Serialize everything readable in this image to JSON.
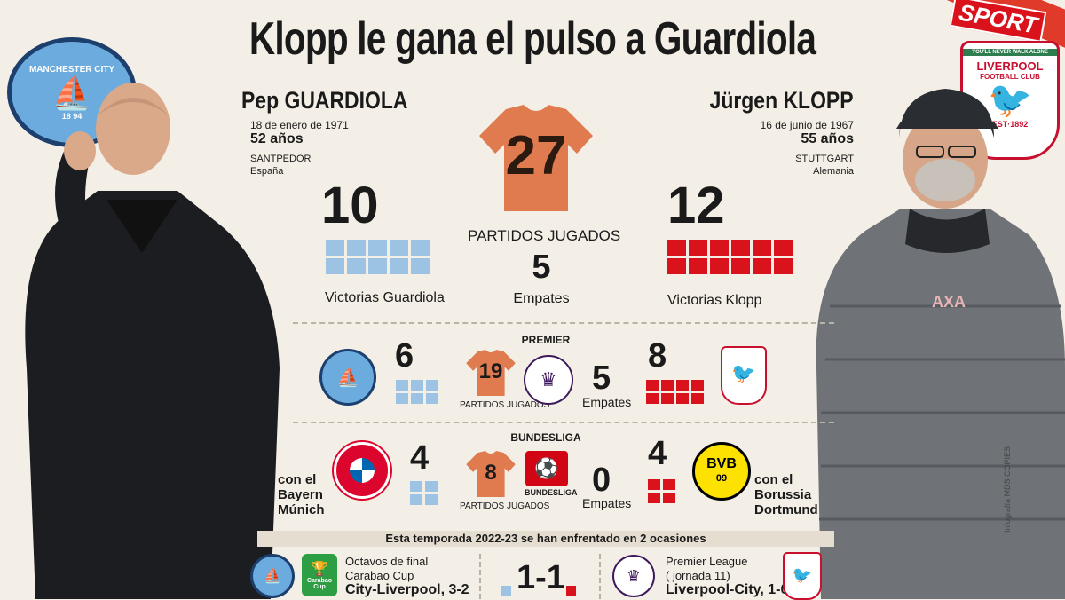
{
  "title": "Klopp le gana el pulso a Guardiola",
  "brand": "SPORT",
  "credit": "Infografía MDS COPIES",
  "guardiola": {
    "name": "Pep GUARDIOLA",
    "birth": "18 de enero de 1971",
    "age": "52 años",
    "town": "SANTPEDOR",
    "country": "España",
    "wins_total": "10",
    "wins_label": "Victorias Guardiola",
    "color": "#9cc3e3"
  },
  "klopp": {
    "name": "Jürgen KLOPP",
    "birth": "16 de junio de 1967",
    "age": "55 años",
    "town": "STUTTGART",
    "country": "Alemania",
    "wins_total": "12",
    "wins_label": "Victorias Klopp",
    "color": "#d9121c"
  },
  "overall": {
    "played": "27",
    "played_label": "PARTIDOS JUGADOS",
    "draws": "5",
    "draws_label": "Empates"
  },
  "premier": {
    "title": "PREMIER",
    "guardiola_wins": "6",
    "klopp_wins": "8",
    "played": "19",
    "played_label": "PARTIDOS JUGADOS",
    "draws": "5",
    "draws_label": "Empates"
  },
  "bundesliga": {
    "title": "BUNDESLIGA",
    "guardiola_wins": "4",
    "klopp_wins": "4",
    "played": "8",
    "played_label": "PARTIDOS JUGADOS",
    "draws": "0",
    "draws_label": "Empates",
    "logo_text": "BUNDESLIGA",
    "guardiola_club_prefix": "con el",
    "guardiola_club": "Bayern",
    "guardiola_club2": "Múnich",
    "klopp_club_prefix": "con el",
    "klopp_club": "Borussia",
    "klopp_club2": "Dortmund"
  },
  "season": {
    "header": "Esta temporada 2022-23 se han enfrentado en 2 ocasiones",
    "match1_line1": "Octavos de final",
    "match1_line2": "Carabao Cup",
    "match1_result": "City-Liverpool, 3-2",
    "aggregate": "1-1",
    "match2_line1": "Premier League",
    "match2_line2": "( jornada 11)",
    "match2_result": "Liverpool-City, 1-0"
  },
  "badges": {
    "city": "MANCHESTER CITY",
    "city_years": "18 94",
    "liverpool": "LIVERPOOL",
    "liverpool_sub": "FOOTBALL CLUB",
    "liverpool_est": "EST·1892",
    "liverpool_motto": "YOU'LL NEVER WALK ALONE",
    "bayern": "FC BAYERN MÜNCHEN",
    "bvb": "BVB",
    "bvb_year": "09",
    "carabao": "Carabao Cup",
    "premier_league": "Premier League"
  }
}
